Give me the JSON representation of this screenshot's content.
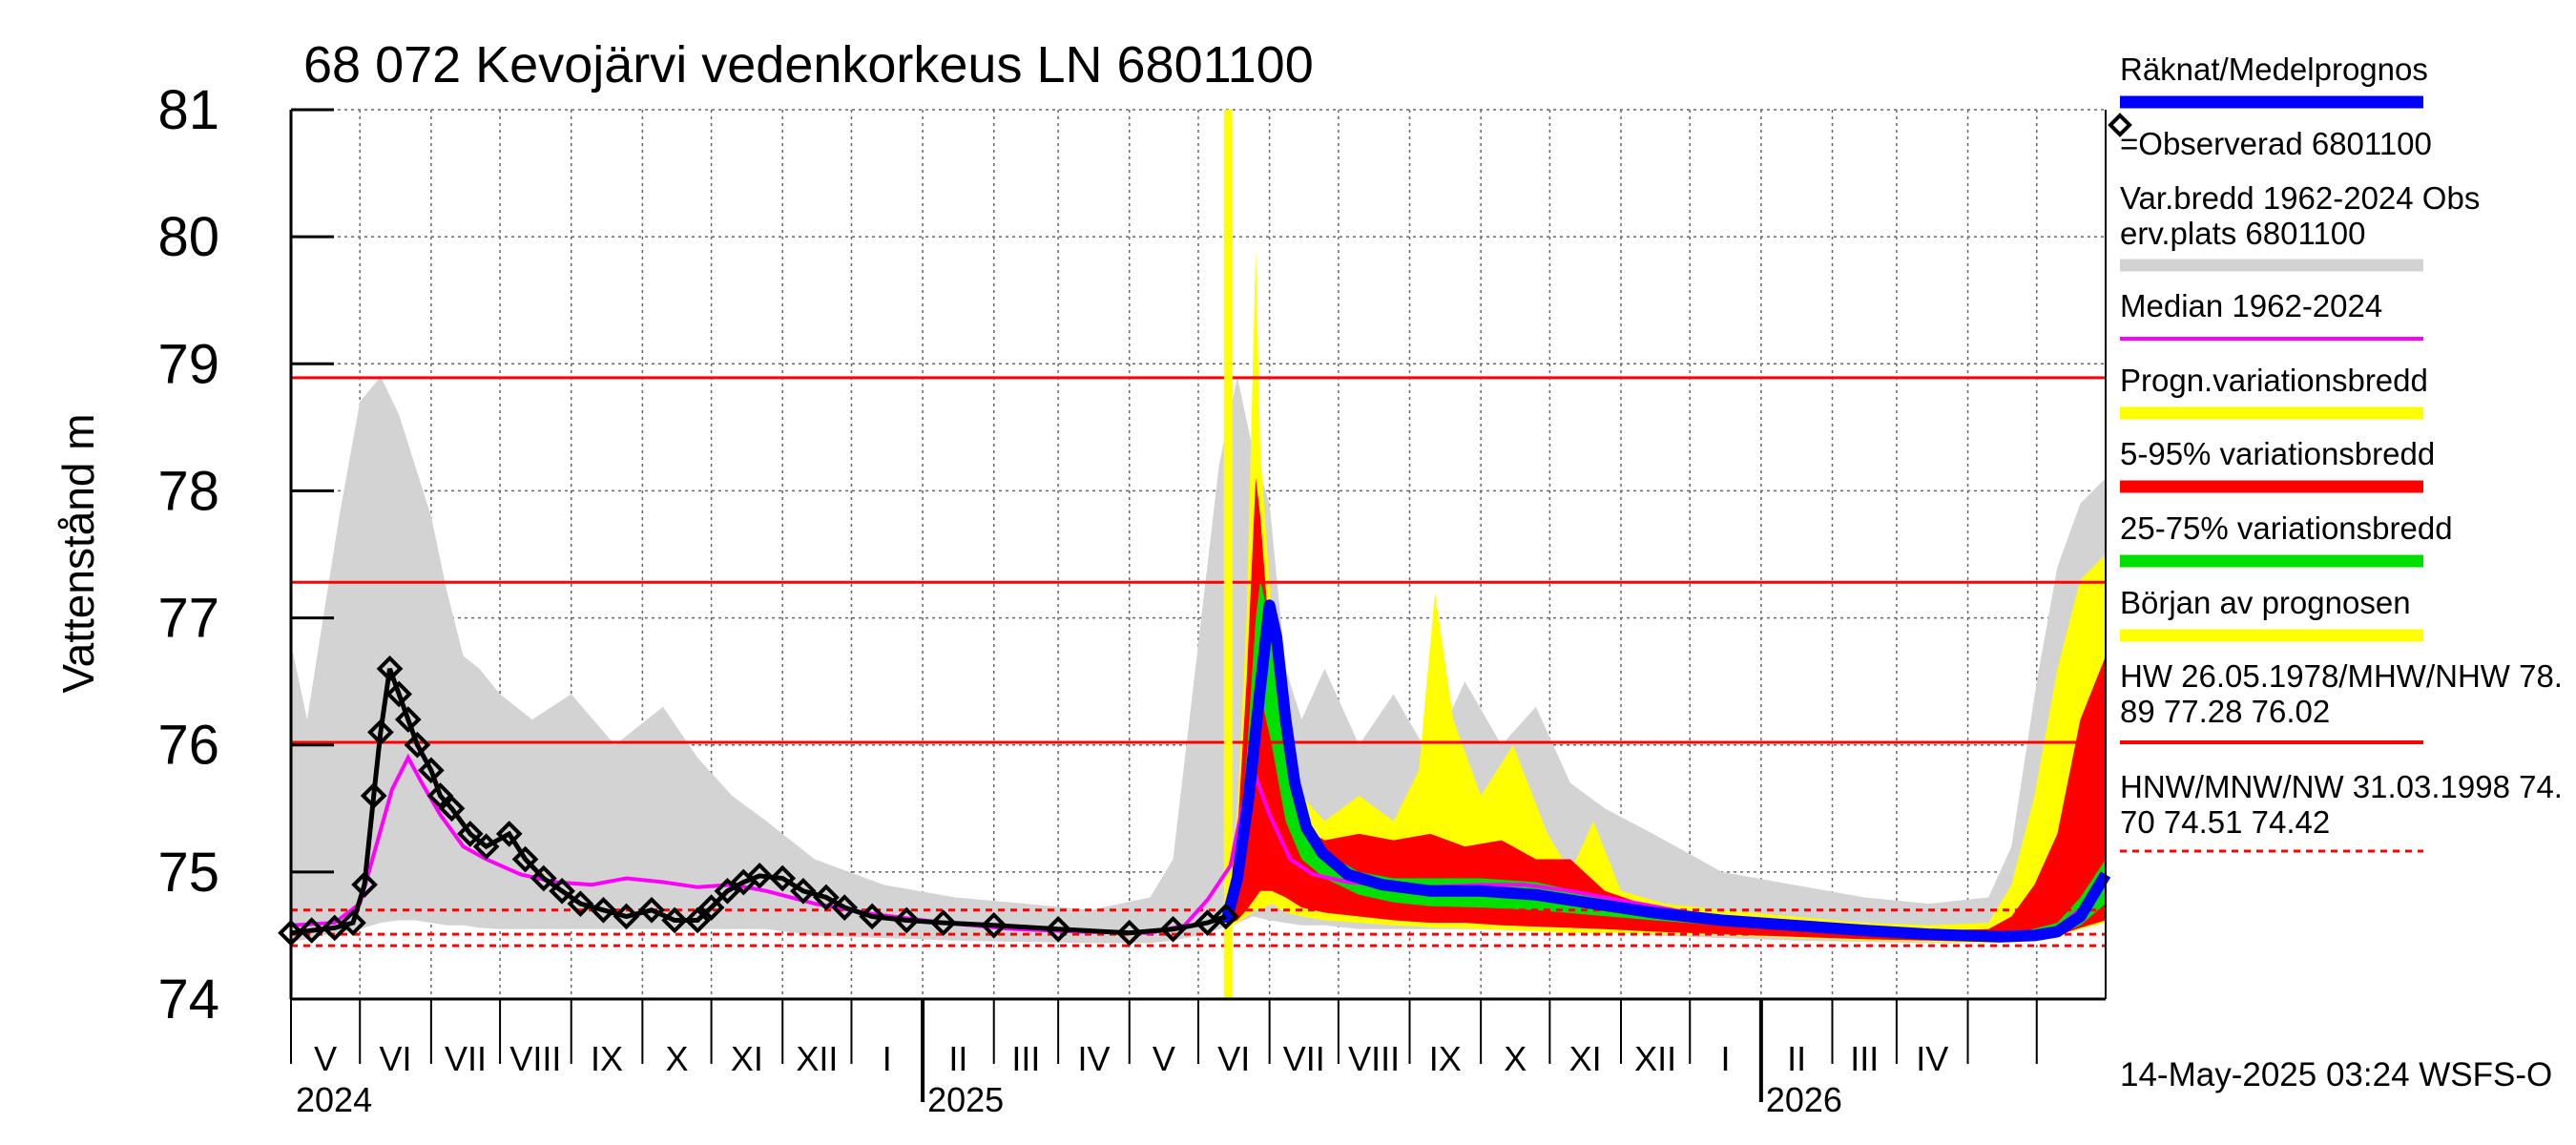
{
  "chart_data": {
    "type": "area",
    "title": "68 072 Kevojärvi vedenkorkeus LN 6801100",
    "ylabel": "Vattenstånd m",
    "ylim": [
      74,
      81
    ],
    "yticks": [
      "74",
      "75",
      "76",
      "77",
      "78",
      "79",
      "80",
      "81"
    ],
    "xlim": [
      "2024-04-01",
      "2026-05-31"
    ],
    "months": [
      "V",
      "VI",
      "VII",
      "VIII",
      "IX",
      "X",
      "XI",
      "XII",
      "I",
      "II",
      "III",
      "IV",
      "V",
      "VI",
      "VII",
      "VIII",
      "IX",
      "X",
      "XI",
      "XII",
      "I",
      "II",
      "III",
      "IV"
    ],
    "years": [
      "2024",
      "2025",
      "2026"
    ],
    "forecast_start": "2025-05-14",
    "reference_lines": [
      {
        "label": "HW",
        "value": 78.89,
        "style": "solid"
      },
      {
        "label": "MHW",
        "value": 77.28,
        "style": "solid"
      },
      {
        "label": "NHW",
        "value": 76.02,
        "style": "solid"
      },
      {
        "label": "HNW",
        "value": 74.7,
        "style": "dashed"
      },
      {
        "label": "MNW",
        "value": 74.51,
        "style": "dashed"
      },
      {
        "label": "NW",
        "value": 74.42,
        "style": "dashed"
      }
    ],
    "observed": {
      "x": [
        "2024-04-01",
        "2024-04-10",
        "2024-04-20",
        "2024-04-28",
        "2024-05-03",
        "2024-05-07",
        "2024-05-10",
        "2024-05-14",
        "2024-05-18",
        "2024-05-22",
        "2024-05-26",
        "2024-06-01",
        "2024-06-05",
        "2024-06-10",
        "2024-06-18",
        "2024-06-25",
        "2024-07-05",
        "2024-07-12",
        "2024-07-20",
        "2024-07-28",
        "2024-08-05",
        "2024-08-15",
        "2024-08-25",
        "2024-09-05",
        "2024-09-15",
        "2024-09-25",
        "2024-10-01",
        "2024-10-08",
        "2024-10-15",
        "2024-10-22",
        "2024-11-01",
        "2024-11-10",
        "2024-11-20",
        "2024-11-28",
        "2024-12-10",
        "2024-12-25",
        "2025-01-10",
        "2025-02-01",
        "2025-03-01",
        "2025-04-01",
        "2025-04-20",
        "2025-05-05",
        "2025-05-13"
      ],
      "y": [
        74.52,
        74.54,
        74.56,
        74.6,
        74.9,
        75.6,
        76.1,
        76.6,
        76.4,
        76.2,
        76.0,
        75.8,
        75.6,
        75.5,
        75.3,
        75.2,
        75.3,
        75.1,
        74.95,
        74.85,
        74.75,
        74.7,
        74.65,
        74.7,
        74.62,
        74.62,
        74.72,
        74.85,
        74.92,
        74.97,
        74.95,
        74.85,
        74.8,
        74.72,
        74.65,
        74.62,
        74.6,
        74.58,
        74.55,
        74.52,
        74.55,
        74.6,
        74.65
      ]
    },
    "median": {
      "x": [
        "2024-04-01",
        "2024-04-20",
        "2024-05-01",
        "2024-05-08",
        "2024-05-15",
        "2024-05-22",
        "2024-05-28",
        "2024-06-05",
        "2024-06-15",
        "2024-06-25",
        "2024-07-10",
        "2024-07-25",
        "2024-08-10",
        "2024-08-25",
        "2024-09-10",
        "2024-09-25",
        "2024-10-10",
        "2024-10-25",
        "2024-11-15",
        "2024-12-10",
        "2025-01-10",
        "2025-02-10",
        "2025-03-10",
        "2025-04-10",
        "2025-04-25",
        "2025-05-05",
        "2025-05-15",
        "2025-05-20",
        "2025-05-25",
        "2025-06-01",
        "2025-06-10",
        "2025-06-20",
        "2025-07-05",
        "2025-07-20",
        "2025-08-10",
        "2025-09-01",
        "2025-09-20",
        "2025-10-10",
        "2025-10-31",
        "2025-11-30",
        "2025-12-31",
        "2026-01-31",
        "2026-02-28",
        "2026-03-31",
        "2026-04-25",
        "2026-05-10",
        "2026-05-25"
      ],
      "y": [
        74.58,
        74.6,
        74.75,
        75.2,
        75.65,
        75.9,
        75.7,
        75.45,
        75.2,
        75.1,
        74.98,
        74.92,
        74.9,
        74.95,
        74.92,
        74.88,
        74.9,
        74.85,
        74.75,
        74.67,
        74.6,
        74.55,
        74.53,
        74.52,
        74.58,
        74.78,
        75.05,
        75.5,
        75.8,
        75.45,
        75.1,
        74.98,
        74.92,
        74.9,
        74.88,
        74.9,
        74.9,
        74.85,
        74.78,
        74.68,
        74.6,
        74.55,
        74.52,
        74.5,
        74.5,
        74.56,
        74.78
      ]
    },
    "forecast_mean": {
      "x": [
        "2025-05-13",
        "2025-05-18",
        "2025-05-23",
        "2025-05-28",
        "2025-06-01",
        "2025-06-04",
        "2025-06-08",
        "2025-06-12",
        "2025-06-17",
        "2025-06-24",
        "2025-07-05",
        "2025-07-20",
        "2025-08-10",
        "2025-09-01",
        "2025-09-25",
        "2025-10-20",
        "2025-11-15",
        "2025-12-15",
        "2026-01-15",
        "2026-02-15",
        "2026-03-15",
        "2026-04-15",
        "2026-04-30",
        "2026-05-10",
        "2026-05-20",
        "2026-05-31"
      ],
      "y": [
        74.6,
        74.95,
        75.6,
        76.45,
        77.1,
        76.85,
        76.2,
        75.7,
        75.35,
        75.15,
        74.98,
        74.9,
        74.85,
        74.85,
        74.82,
        74.75,
        74.68,
        74.62,
        74.58,
        74.54,
        74.51,
        74.49,
        74.5,
        74.53,
        74.65,
        74.98
      ]
    },
    "bands": [
      {
        "name": "Var.bredd 1962-2024 Obs erv.plats 6801100",
        "color": "#d3d3d3",
        "x": [
          "2024-04-01",
          "2024-04-08",
          "2024-04-15",
          "2024-04-22",
          "2024-05-01",
          "2024-05-10",
          "2024-05-18",
          "2024-05-25",
          "2024-06-01",
          "2024-06-08",
          "2024-06-15",
          "2024-06-22",
          "2024-07-01",
          "2024-07-15",
          "2024-08-01",
          "2024-08-20",
          "2024-09-10",
          "2024-09-25",
          "2024-10-10",
          "2024-10-25",
          "2024-11-15",
          "2024-12-15",
          "2025-01-15",
          "2025-02-15",
          "2025-03-15",
          "2025-04-10",
          "2025-04-20",
          "2025-05-01",
          "2025-05-10",
          "2025-05-18",
          "2025-05-25",
          "2025-06-01",
          "2025-06-08",
          "2025-06-15",
          "2025-06-25",
          "2025-07-10",
          "2025-07-25",
          "2025-08-10",
          "2025-08-25",
          "2025-09-10",
          "2025-09-25",
          "2025-10-10",
          "2025-10-25",
          "2025-11-15",
          "2025-12-15",
          "2026-01-15",
          "2026-02-15",
          "2026-03-15",
          "2026-04-10",
          "2026-04-20",
          "2026-05-01",
          "2026-05-10",
          "2026-05-20",
          "2026-05-31"
        ],
        "lower": [
          74.45,
          74.47,
          74.5,
          74.52,
          74.55,
          74.6,
          74.62,
          74.62,
          74.6,
          74.58,
          74.58,
          74.56,
          74.55,
          74.55,
          74.55,
          74.55,
          74.55,
          74.55,
          74.55,
          74.55,
          74.5,
          74.48,
          74.46,
          74.45,
          74.44,
          74.44,
          74.46,
          74.5,
          74.55,
          74.6,
          74.65,
          74.62,
          74.6,
          74.58,
          74.58,
          74.55,
          74.55,
          74.55,
          74.55,
          74.55,
          74.55,
          74.55,
          74.55,
          74.5,
          74.48,
          74.46,
          74.45,
          74.44,
          74.44,
          74.46,
          74.5,
          74.55,
          74.58,
          74.6
        ],
        "upper": [
          76.8,
          76.2,
          77.0,
          77.8,
          78.7,
          78.9,
          78.6,
          78.2,
          77.8,
          77.2,
          76.7,
          76.6,
          76.4,
          76.2,
          76.4,
          76.0,
          76.3,
          75.9,
          75.6,
          75.4,
          75.1,
          74.9,
          74.8,
          74.75,
          74.7,
          74.8,
          75.1,
          76.8,
          78.2,
          78.9,
          78.3,
          77.9,
          76.6,
          76.2,
          76.6,
          76.0,
          76.4,
          75.9,
          76.5,
          76.0,
          76.3,
          75.7,
          75.5,
          75.3,
          75.0,
          74.9,
          74.8,
          74.75,
          74.8,
          75.2,
          76.5,
          77.4,
          77.9,
          78.1
        ]
      },
      {
        "name": "Progn.variationsbredd",
        "color": "#ffff00",
        "x": [
          "2025-05-13",
          "2025-05-18",
          "2025-05-22",
          "2025-05-26",
          "2025-05-28",
          "2025-06-02",
          "2025-06-08",
          "2025-06-15",
          "2025-06-25",
          "2025-07-10",
          "2025-07-25",
          "2025-08-05",
          "2025-08-12",
          "2025-08-20",
          "2025-09-01",
          "2025-09-15",
          "2025-09-30",
          "2025-10-10",
          "2025-10-20",
          "2025-11-01",
          "2025-11-20",
          "2025-12-15",
          "2026-01-15",
          "2026-02-15",
          "2026-03-15",
          "2026-04-10",
          "2026-04-20",
          "2026-04-30",
          "2026-05-10",
          "2026-05-20",
          "2026-05-31"
        ],
        "lower": [
          74.55,
          74.6,
          74.65,
          74.7,
          74.7,
          74.75,
          74.68,
          74.65,
          74.62,
          74.6,
          74.58,
          74.57,
          74.56,
          74.56,
          74.55,
          74.54,
          74.53,
          74.52,
          74.52,
          74.52,
          74.51,
          74.5,
          74.48,
          74.46,
          74.45,
          74.44,
          74.45,
          74.47,
          74.5,
          74.55,
          74.6
        ],
        "upper": [
          74.7,
          75.5,
          77.0,
          79.9,
          78.3,
          77.0,
          76.0,
          75.6,
          75.4,
          75.6,
          75.4,
          75.8,
          77.2,
          76.2,
          75.6,
          76.0,
          75.3,
          75.0,
          75.4,
          74.85,
          74.75,
          74.7,
          74.65,
          74.6,
          74.58,
          74.6,
          74.9,
          75.6,
          76.6,
          77.3,
          77.5
        ]
      },
      {
        "name": "5-95% variationsbredd",
        "color": "#ff0000",
        "x": [
          "2025-05-13",
          "2025-05-18",
          "2025-05-22",
          "2025-05-26",
          "2025-05-28",
          "2025-06-02",
          "2025-06-08",
          "2025-06-15",
          "2025-06-25",
          "2025-07-10",
          "2025-07-25",
          "2025-08-10",
          "2025-08-25",
          "2025-09-10",
          "2025-09-25",
          "2025-10-10",
          "2025-10-25",
          "2025-11-15",
          "2025-12-15",
          "2026-01-15",
          "2026-02-15",
          "2026-03-15",
          "2026-04-10",
          "2026-04-20",
          "2026-04-30",
          "2026-05-10",
          "2026-05-20",
          "2026-05-31"
        ],
        "lower": [
          74.58,
          74.62,
          74.7,
          74.8,
          74.85,
          74.85,
          74.8,
          74.72,
          74.68,
          74.65,
          74.62,
          74.6,
          74.6,
          74.58,
          74.57,
          74.56,
          74.55,
          74.53,
          74.51,
          74.49,
          74.47,
          74.46,
          74.45,
          74.46,
          74.48,
          74.5,
          74.56,
          74.62
        ],
        "upper": [
          74.65,
          75.3,
          76.5,
          78.1,
          77.8,
          76.6,
          75.6,
          75.35,
          75.25,
          75.3,
          75.25,
          75.3,
          75.2,
          75.25,
          75.1,
          75.1,
          74.85,
          74.72,
          74.66,
          74.6,
          74.56,
          74.54,
          74.55,
          74.65,
          74.9,
          75.3,
          76.2,
          76.7
        ]
      },
      {
        "name": "25-75% variationsbredd",
        "color": "#00e000",
        "x": [
          "2025-05-13",
          "2025-05-18",
          "2025-05-22",
          "2025-05-26",
          "2025-05-28",
          "2025-06-02",
          "2025-06-08",
          "2025-06-15",
          "2025-06-25",
          "2025-07-10",
          "2025-07-25",
          "2025-08-10",
          "2025-09-01",
          "2025-09-25",
          "2025-10-20",
          "2025-11-15",
          "2025-12-15",
          "2026-01-15",
          "2026-02-15",
          "2026-03-15",
          "2026-04-10",
          "2026-04-25",
          "2026-05-10",
          "2026-05-20",
          "2026-05-31"
        ],
        "lower": [
          74.6,
          74.8,
          75.3,
          76.2,
          76.4,
          76.0,
          75.4,
          75.1,
          74.95,
          74.82,
          74.76,
          74.73,
          74.72,
          74.7,
          74.66,
          74.62,
          74.58,
          74.55,
          74.52,
          74.5,
          74.48,
          74.48,
          74.5,
          74.58,
          74.75
        ],
        "upper": [
          74.62,
          75.1,
          75.9,
          77.0,
          77.3,
          76.9,
          76.2,
          75.5,
          75.15,
          75.0,
          74.95,
          74.95,
          74.95,
          74.92,
          74.82,
          74.7,
          74.64,
          74.59,
          74.55,
          74.52,
          74.51,
          74.53,
          74.6,
          74.8,
          75.1
        ]
      }
    ],
    "legend_position": "right"
  },
  "legend": {
    "items": [
      "Räknat/Medelprognos",
      "=Observerad 6801100",
      "Var.bredd 1962-2024   Obs",
      "erv.plats 6801100",
      "Median 1962-2024",
      "Progn.variationsbredd",
      "5-95% variationsbredd",
      "25-75% variationsbredd",
      "Början av prognosen",
      "HW 26.05.1978/MHW/NHW 78.",
      "89 77.28 76.02",
      "HNW/MNW/NW 31.03.1998 74.",
      "70 74.51 74.42"
    ],
    "colors": {
      "mean": "#0000ff",
      "observed": "#000000",
      "range": "#d3d3d3",
      "median": "#ff00ff",
      "forecast_range": "#ffff00",
      "p5_95": "#ff0000",
      "p25_75": "#00e000",
      "forecast_start": "#ffff00",
      "high_lines": "#ff0000",
      "low_lines": "#ff0000"
    }
  },
  "footer": "14-May-2025 03:24 WSFS-O"
}
